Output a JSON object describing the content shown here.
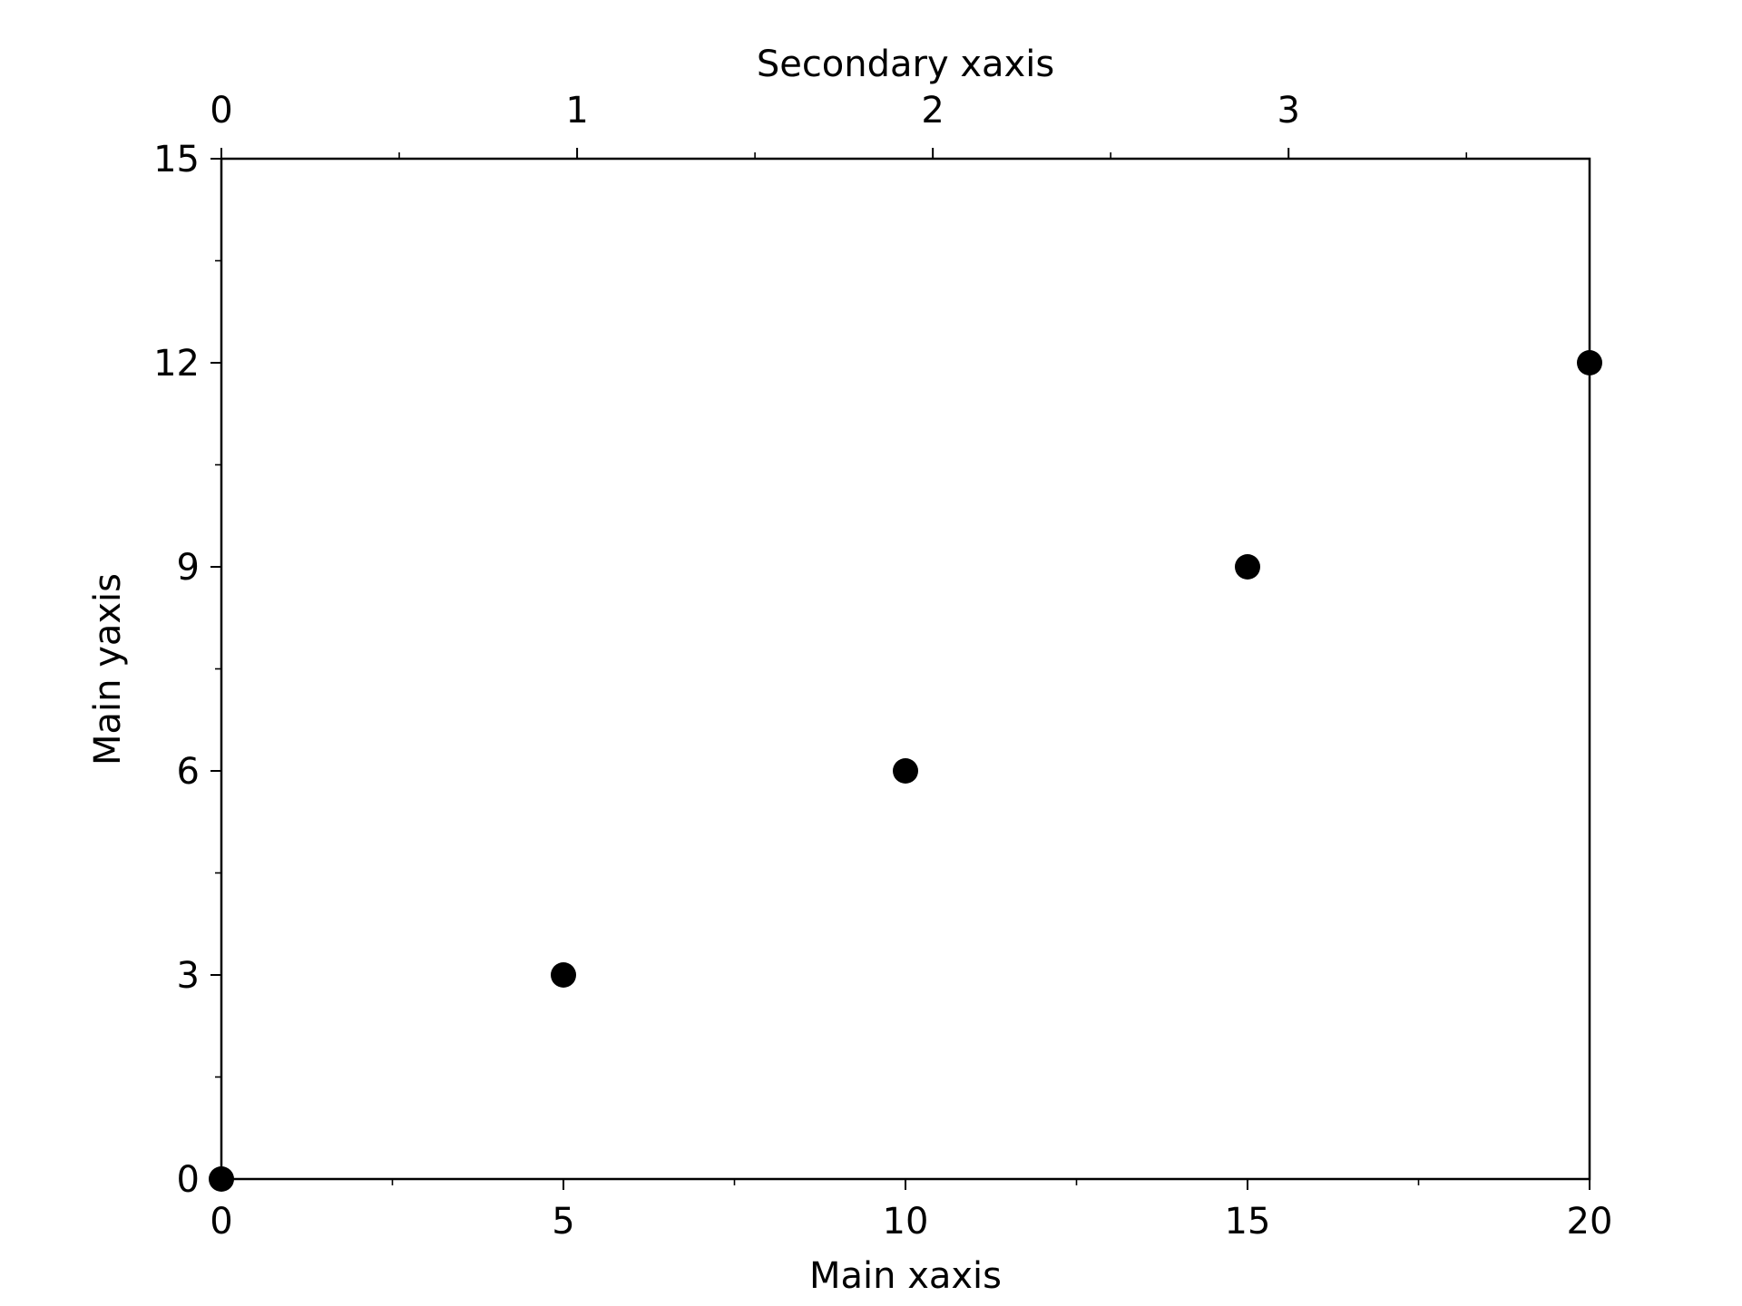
{
  "chart_data": {
    "type": "scatter",
    "title": "",
    "xlabel": "Main xaxis",
    "ylabel": "Main yaxis",
    "secondary_xlabel": "Secondary xaxis",
    "xlim": [
      0,
      20
    ],
    "ylim": [
      0,
      15
    ],
    "secondary_xlim": [
      0,
      3.8462
    ],
    "x_ticks": [
      0,
      5,
      10,
      15,
      20
    ],
    "x_minor_ticks": [
      2.5,
      7.5,
      12.5,
      17.5
    ],
    "y_ticks": [
      0,
      3,
      6,
      9,
      12,
      15
    ],
    "y_minor_ticks": [
      1.5,
      4.5,
      7.5,
      10.5,
      13.5
    ],
    "secondary_x_ticks": [
      0,
      1,
      2,
      3
    ],
    "secondary_x_minor_ticks": [
      0.5,
      1.5,
      2.5,
      3.5
    ],
    "grid": false,
    "legend": "none",
    "marker_color": "#000000",
    "series": [
      {
        "x": [
          0,
          5,
          10,
          15,
          20
        ],
        "y": [
          0,
          3,
          6,
          9,
          12
        ]
      }
    ]
  }
}
